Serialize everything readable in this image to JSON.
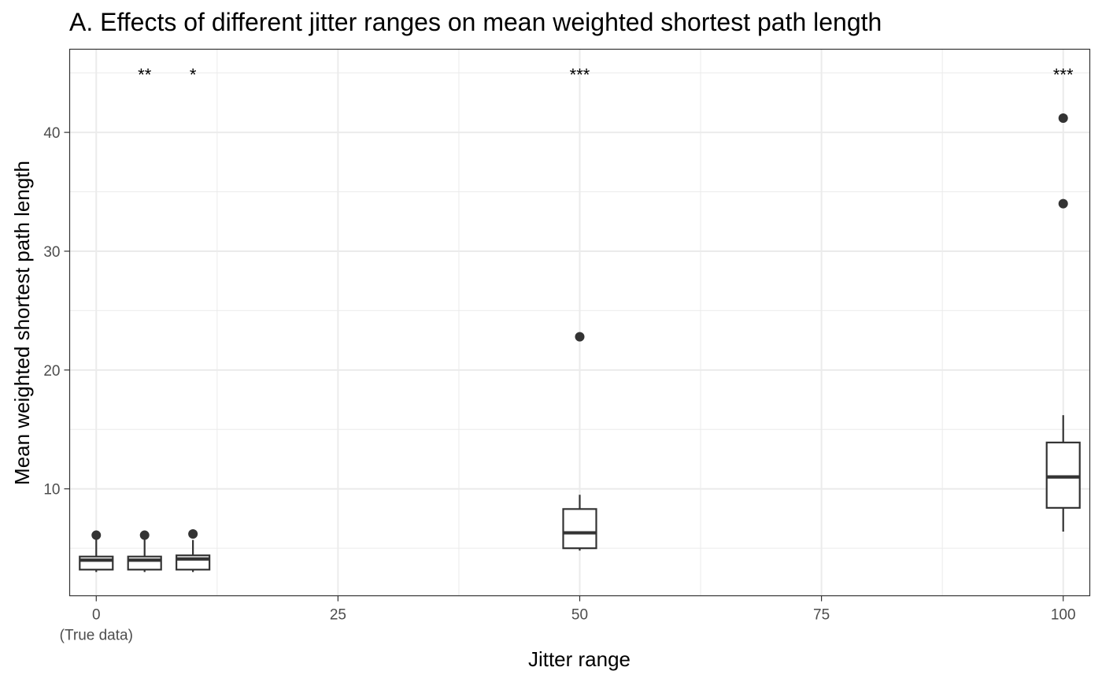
{
  "chart_data": {
    "type": "boxplot",
    "title": "A. Effects of different jitter ranges on mean weighted shortest path length",
    "xlabel": "Jitter range",
    "ylabel": "Mean weighted shortest path length",
    "xlim": [
      -2.75,
      102.75
    ],
    "ylim": [
      1,
      47
    ],
    "x_ticks": [
      {
        "value": 0,
        "label": "0",
        "sublabel": "(True data)"
      },
      {
        "value": 25,
        "label": "25"
      },
      {
        "value": 50,
        "label": "50"
      },
      {
        "value": 75,
        "label": "75"
      },
      {
        "value": 100,
        "label": "100"
      }
    ],
    "y_ticks": [
      10,
      20,
      30,
      40
    ],
    "grid": true,
    "legend": "none",
    "colors": {
      "box": "#333333",
      "grid": "#ebebeb",
      "panel_border": "#333333"
    },
    "boxes": [
      {
        "x": 0,
        "lower_whisker": 3.0,
        "q1": 3.2,
        "median": 4.0,
        "q3": 4.3,
        "upper_whisker": 5.8,
        "outliers": [
          6.1
        ],
        "significance": ""
      },
      {
        "x": 5,
        "lower_whisker": 3.0,
        "q1": 3.2,
        "median": 4.0,
        "q3": 4.3,
        "upper_whisker": 5.8,
        "outliers": [
          6.1
        ],
        "significance": "**"
      },
      {
        "x": 10,
        "lower_whisker": 3.0,
        "q1": 3.2,
        "median": 4.1,
        "q3": 4.4,
        "upper_whisker": 5.7,
        "outliers": [
          6.2
        ],
        "significance": "*"
      },
      {
        "x": 50,
        "lower_whisker": 4.8,
        "q1": 5.0,
        "median": 6.3,
        "q3": 8.3,
        "upper_whisker": 9.5,
        "outliers": [
          22.8
        ],
        "significance": "***"
      },
      {
        "x": 100,
        "lower_whisker": 6.4,
        "q1": 8.4,
        "median": 11.0,
        "q3": 13.9,
        "upper_whisker": 16.2,
        "outliers": [
          41.2,
          34.0
        ],
        "significance": "***"
      }
    ],
    "significance_y": 45
  }
}
